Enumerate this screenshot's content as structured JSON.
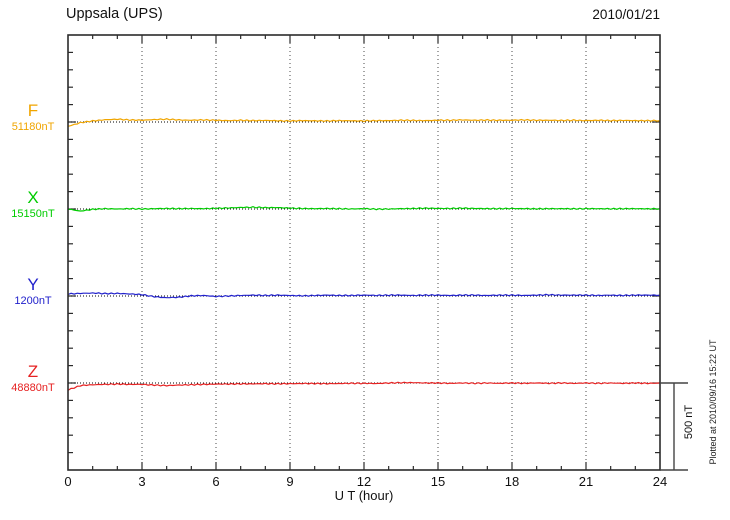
{
  "header": {
    "station": "Uppsala (UPS)",
    "date": "2010/01/21"
  },
  "footer_note": "Plotted at 2010/09/16 15:22 UT",
  "x_axis": {
    "label": "U T (hour)",
    "ticks": [
      0,
      3,
      6,
      9,
      12,
      15,
      18,
      21,
      24
    ],
    "minor_step_hours": 1,
    "range": [
      0,
      24
    ],
    "gridline_hours": [
      3,
      6,
      9,
      12,
      15,
      18,
      21
    ]
  },
  "scale_bar": {
    "label": "500 nT",
    "value_nT": 500
  },
  "chart_data": {
    "type": "line",
    "title": "Uppsala (UPS) magnetogram",
    "xlabel": "U T (hour)",
    "xlim": [
      0,
      24
    ],
    "grid": "vertical-dotted-every-3h",
    "y_scale": {
      "division_nT": 500,
      "minor_tick_nT": 100
    },
    "x": [
      0,
      0.5,
      1,
      1.5,
      2,
      2.5,
      3,
      3.5,
      4,
      4.5,
      5,
      5.5,
      6,
      6.5,
      7,
      7.5,
      8,
      8.5,
      9,
      9.5,
      10,
      10.5,
      11,
      11.5,
      12,
      12.5,
      13,
      13.5,
      14,
      14.5,
      15,
      15.5,
      16,
      16.5,
      17,
      17.5,
      18,
      18.5,
      19,
      19.5,
      20,
      20.5,
      21,
      21.5,
      22,
      22.5,
      23,
      23.5,
      24
    ],
    "series": [
      {
        "label": "F",
        "baseline_label": "51180nT",
        "baseline_nT": 51180,
        "color": "#f0a500",
        "offsets_nT": [
          -25,
          -4,
          6,
          13,
          16,
          12,
          10,
          14,
          16,
          12,
          10,
          12,
          10,
          8,
          10,
          8,
          9,
          7,
          6,
          8,
          7,
          6,
          8,
          7,
          6,
          8,
          8,
          10,
          9,
          8,
          10,
          10,
          12,
          10,
          11,
          10,
          10,
          12,
          10,
          10,
          9,
          10,
          8,
          10,
          8,
          9,
          8,
          8,
          8
        ]
      },
      {
        "label": "X",
        "baseline_label": "15150nT",
        "baseline_nT": 15150,
        "color": "#00cc00",
        "offsets_nT": [
          0,
          -12,
          -2,
          2,
          0,
          2,
          0,
          2,
          3,
          2,
          3,
          2,
          4,
          6,
          9,
          10,
          8,
          8,
          5,
          3,
          2,
          3,
          2,
          0,
          2,
          -1,
          0,
          2,
          3,
          5,
          3,
          3,
          5,
          3,
          2,
          2,
          3,
          2,
          1,
          2,
          2,
          1,
          2,
          2,
          1,
          2,
          2,
          1,
          2
        ]
      },
      {
        "label": "Y",
        "baseline_label": "1200nT",
        "baseline_nT": 1200,
        "color": "#2222cc",
        "offsets_nT": [
          12,
          15,
          17,
          14,
          15,
          12,
          8,
          -4,
          -10,
          -7,
          1,
          3,
          -3,
          0,
          3,
          5,
          3,
          5,
          3,
          1,
          3,
          5,
          3,
          3,
          5,
          3,
          5,
          5,
          3,
          5,
          5,
          3,
          5,
          5,
          3,
          5,
          5,
          3,
          5,
          7,
          5,
          5,
          5,
          3,
          5,
          3,
          5,
          5,
          5
        ]
      },
      {
        "label": "Z",
        "baseline_label": "48880nT",
        "baseline_nT": 48880,
        "color": "#e62222",
        "offsets_nT": [
          -40,
          -15,
          -10,
          -8,
          -6,
          -8,
          -8,
          -12,
          -15,
          -12,
          -10,
          -8,
          -6,
          -6,
          -5,
          -5,
          -4,
          -5,
          -4,
          -3,
          -3,
          -4,
          -3,
          -2,
          -2,
          -3,
          0,
          2,
          2,
          0,
          0,
          -2,
          0,
          -2,
          0,
          -2,
          0,
          -2,
          0,
          -2,
          0,
          -2,
          0,
          -2,
          0,
          -2,
          0,
          -2,
          0
        ]
      }
    ]
  }
}
